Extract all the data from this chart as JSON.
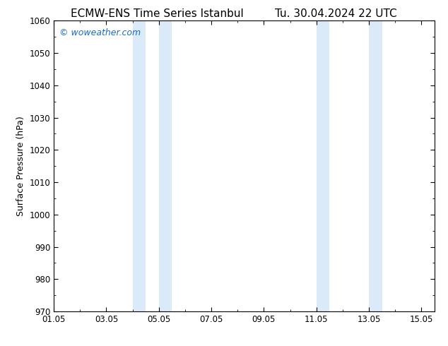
{
  "title_left": "ECMW-ENS Time Series Istanbul",
  "title_right": "Tu. 30.04.2024 22 UTC",
  "ylabel": "Surface Pressure (hPa)",
  "ylim": [
    970,
    1060
  ],
  "yticks": [
    970,
    980,
    990,
    1000,
    1010,
    1020,
    1030,
    1040,
    1050,
    1060
  ],
  "xlim_start": 0.0,
  "xlim_end": 14.5,
  "xtick_positions": [
    0,
    2,
    4,
    6,
    8,
    10,
    12,
    14
  ],
  "xtick_labels": [
    "01.05",
    "03.05",
    "05.05",
    "07.05",
    "09.05",
    "11.05",
    "13.05",
    "15.05"
  ],
  "shade_regions": [
    {
      "xmin": 3.0,
      "xmax": 3.5
    },
    {
      "xmin": 4.0,
      "xmax": 4.5
    },
    {
      "xmin": 10.0,
      "xmax": 10.5
    },
    {
      "xmin": 12.0,
      "xmax": 12.5
    }
  ],
  "shade_color": "#daeaf8",
  "watermark_text": "© woweather.com",
  "watermark_color": "#1a6bcc",
  "background_color": "#ffffff",
  "tick_color": "#000000",
  "title_fontsize": 11,
  "axis_label_fontsize": 9,
  "tick_fontsize": 8.5,
  "watermark_fontsize": 9
}
